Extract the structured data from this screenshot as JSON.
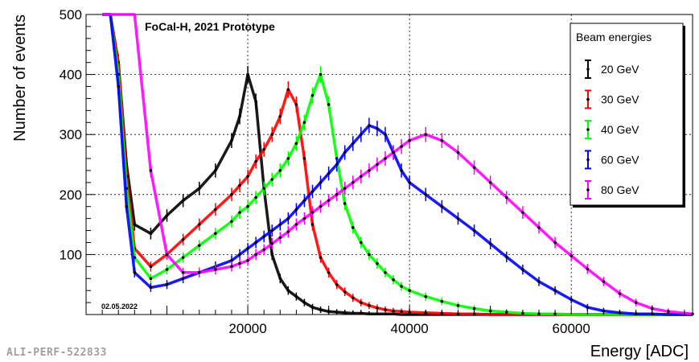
{
  "reference_label": "ALI-PERF-522833",
  "chart_data": {
    "type": "line",
    "title": "FoCal-H, 2021 Prototype",
    "date_label": "02.05.2022",
    "xlabel": "Energy [ADC]",
    "ylabel": "Number of events",
    "xlim": [
      0,
      75000
    ],
    "ylim": [
      0,
      500
    ],
    "xticks": [
      20000,
      40000,
      60000
    ],
    "yticks": [
      100,
      200,
      300,
      400,
      500
    ],
    "grid": true,
    "legend_title": "Beam energies",
    "legend_position": "top-right",
    "x": [
      2000,
      3000,
      4000,
      5000,
      6000,
      8000,
      10000,
      12000,
      14000,
      16000,
      18000,
      19000,
      20000,
      21000,
      22000,
      23000,
      24000,
      25000,
      26000,
      27000,
      28000,
      29000,
      30000,
      31000,
      32000,
      33000,
      34000,
      35000,
      36000,
      37000,
      38000,
      39000,
      40000,
      42000,
      44000,
      46000,
      48000,
      50000,
      52000,
      54000,
      56000,
      58000,
      60000,
      62000,
      64000,
      66000,
      68000,
      70000,
      72000,
      75000
    ],
    "series": [
      {
        "name": "20 GeV",
        "color": "#000000",
        "values": [
          500,
          500,
          420,
          250,
          150,
          135,
          165,
          190,
          210,
          240,
          290,
          330,
          400,
          355,
          210,
          100,
          60,
          40,
          30,
          20,
          12,
          8,
          5,
          4,
          3,
          2,
          2,
          1,
          1,
          1,
          1,
          0,
          0,
          0,
          0,
          0,
          0,
          0,
          0,
          0,
          0,
          0,
          0,
          0,
          0,
          0,
          0,
          0,
          0,
          0
        ]
      },
      {
        "name": "30 GeV",
        "color": "#ff0000",
        "values": [
          500,
          500,
          420,
          230,
          110,
          80,
          100,
          125,
          150,
          175,
          200,
          215,
          230,
          255,
          275,
          300,
          330,
          375,
          350,
          260,
          150,
          95,
          70,
          50,
          38,
          28,
          20,
          15,
          11,
          8,
          6,
          5,
          4,
          3,
          2,
          1,
          1,
          0,
          0,
          0,
          0,
          0,
          0,
          0,
          0,
          0,
          0,
          0,
          0,
          0
        ]
      },
      {
        "name": "40 GeV",
        "color": "#00ff00",
        "values": [
          500,
          500,
          400,
          210,
          95,
          60,
          75,
          95,
          115,
          135,
          155,
          170,
          180,
          195,
          210,
          225,
          240,
          260,
          285,
          320,
          365,
          400,
          350,
          260,
          185,
          145,
          120,
          100,
          85,
          70,
          58,
          47,
          40,
          30,
          22,
          15,
          10,
          6,
          4,
          2,
          1,
          1,
          0,
          0,
          0,
          0,
          0,
          0,
          0,
          0
        ]
      },
      {
        "name": "60 GeV",
        "color": "#0000ff",
        "values": [
          500,
          500,
          380,
          180,
          70,
          45,
          50,
          60,
          70,
          80,
          90,
          100,
          110,
          120,
          130,
          140,
          150,
          160,
          175,
          190,
          205,
          220,
          235,
          250,
          270,
          285,
          300,
          315,
          310,
          300,
          270,
          240,
          220,
          200,
          180,
          160,
          140,
          118,
          96,
          75,
          55,
          40,
          25,
          12,
          6,
          3,
          1,
          1,
          0,
          0
        ]
      },
      {
        "name": "80 GeV",
        "color": "#ff00ff",
        "values": [
          500,
          500,
          500,
          500,
          500,
          240,
          100,
          70,
          70,
          75,
          80,
          85,
          90,
          100,
          108,
          118,
          128,
          138,
          150,
          160,
          170,
          180,
          190,
          200,
          210,
          220,
          230,
          240,
          250,
          260,
          270,
          280,
          290,
          300,
          290,
          270,
          245,
          220,
          195,
          170,
          145,
          120,
          98,
          76,
          55,
          35,
          20,
          10,
          5,
          1
        ]
      }
    ]
  }
}
